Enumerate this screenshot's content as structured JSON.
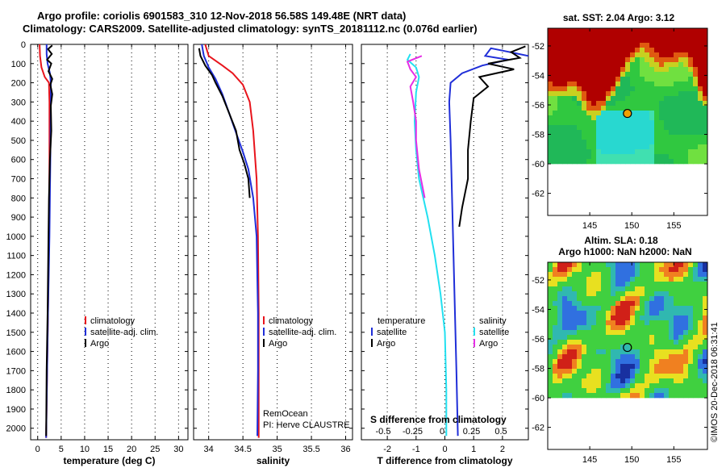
{
  "header": {
    "title_line1": "Argo profile: coriolis 6901583_310 12-Nov-2018 56.58S 149.48E (NRT data)",
    "title_line2": "Climatology: CARS2009. Satellite-adjusted climatology: synTS_20181112.nc (0.076d earlier)"
  },
  "colors": {
    "climatology": "#e8141c",
    "satellite": "#1f2ed8",
    "argo": "#000000",
    "satellite_sal": "#22e0f0",
    "argo_sal": "#e62ee6"
  },
  "depth_axis": {
    "ticks": [
      "0",
      "100",
      "200",
      "300",
      "400",
      "500",
      "600",
      "700",
      "800",
      "900",
      "1000",
      "1100",
      "1200",
      "1300",
      "1400",
      "1500",
      "1600",
      "1700",
      "1800",
      "1900",
      "2000"
    ],
    "ylim": [
      0,
      2060
    ]
  },
  "chart_data": [
    {
      "type": "line",
      "name": "temperature",
      "xlabel": "temperature (deg C)",
      "ylabel": "depth",
      "xlim": [
        -1.5,
        32
      ],
      "xticks": [
        0,
        5,
        10,
        15,
        20,
        25,
        30
      ],
      "xtick_labels": [
        "0",
        "5",
        "10",
        "15",
        "20",
        "25",
        "30"
      ],
      "legend": [
        "climatology",
        "satellite-adj. clim.",
        "Argo"
      ],
      "series": [
        {
          "name": "climatology",
          "color": "#e8141c",
          "points": [
            [
              0.4,
              0
            ],
            [
              0.5,
              60
            ],
            [
              0.8,
              120
            ],
            [
              1.5,
              170
            ],
            [
              2.4,
              200
            ],
            [
              2.5,
              300
            ],
            [
              2.5,
              600
            ],
            [
              2.4,
              1000
            ],
            [
              2.2,
              1400
            ],
            [
              2.0,
              1700
            ],
            [
              1.8,
              2050
            ]
          ]
        },
        {
          "name": "satellite-adj. clim.",
          "color": "#1f2ed8",
          "points": [
            [
              1.9,
              0
            ],
            [
              1.9,
              50
            ],
            [
              2.1,
              100
            ],
            [
              2.6,
              150
            ],
            [
              2.8,
              200
            ],
            [
              2.8,
              300
            ],
            [
              2.7,
              600
            ],
            [
              2.5,
              1000
            ],
            [
              2.2,
              1400
            ],
            [
              2.0,
              1700
            ],
            [
              1.8,
              2050
            ]
          ]
        },
        {
          "name": "Argo",
          "color": "#000000",
          "points": [
            [
              3.1,
              5
            ],
            [
              2.2,
              25
            ],
            [
              3.0,
              50
            ],
            [
              2.0,
              80
            ],
            [
              2.9,
              100
            ],
            [
              2.3,
              140
            ],
            [
              3.1,
              180
            ],
            [
              2.7,
              210
            ],
            [
              3.1,
              260
            ],
            [
              2.8,
              320
            ],
            [
              2.9,
              450
            ],
            [
              2.6,
              600
            ],
            [
              2.4,
              800
            ],
            [
              2.3,
              1000
            ],
            [
              2.1,
              1400
            ],
            [
              1.9,
              1700
            ],
            [
              1.8,
              2040
            ]
          ]
        }
      ]
    },
    {
      "type": "line",
      "name": "salinity",
      "xlabel": "salinity",
      "ylabel": "depth",
      "xlim": [
        33.78,
        36.1
      ],
      "xticks": [
        34,
        34.5,
        35,
        35.5,
        36
      ],
      "xtick_labels": [
        "34",
        "34.5",
        "35",
        "35.5",
        "36"
      ],
      "legend": [
        "climatology",
        "satellite-adj. clim.",
        "Argo"
      ],
      "annotation": [
        "RemOcean",
        "PI: Herve CLAUSTRE"
      ],
      "series": [
        {
          "name": "climatology",
          "color": "#e8141c",
          "points": [
            [
              33.95,
              0
            ],
            [
              34.0,
              60
            ],
            [
              34.2,
              110
            ],
            [
              34.35,
              150
            ],
            [
              34.5,
              210
            ],
            [
              34.6,
              300
            ],
            [
              34.65,
              450
            ],
            [
              34.7,
              700
            ],
            [
              34.72,
              1000
            ],
            [
              34.73,
              1400
            ],
            [
              34.73,
              1700
            ],
            [
              34.73,
              2050
            ]
          ]
        },
        {
          "name": "satellite-adj. clim.",
          "color": "#1f2ed8",
          "points": [
            [
              33.9,
              0
            ],
            [
              33.93,
              60
            ],
            [
              34.0,
              120
            ],
            [
              34.1,
              180
            ],
            [
              34.2,
              260
            ],
            [
              34.3,
              360
            ],
            [
              34.4,
              460
            ],
            [
              34.5,
              560
            ],
            [
              34.58,
              650
            ],
            [
              34.65,
              800
            ],
            [
              34.7,
              1000
            ],
            [
              34.72,
              1400
            ],
            [
              34.72,
              1700
            ],
            [
              34.71,
              2040
            ]
          ]
        },
        {
          "name": "Argo",
          "color": "#000000",
          "points": [
            [
              33.86,
              20
            ],
            [
              33.88,
              60
            ],
            [
              33.95,
              110
            ],
            [
              34.05,
              160
            ],
            [
              34.1,
              200
            ],
            [
              34.2,
              270
            ],
            [
              34.3,
              360
            ],
            [
              34.4,
              450
            ],
            [
              34.45,
              550
            ],
            [
              34.52,
              620
            ],
            [
              34.58,
              700
            ],
            [
              34.6,
              800
            ]
          ]
        }
      ]
    },
    {
      "type": "line",
      "name": "difference",
      "xlabel": "T difference from climatology",
      "xlabel_top": "S difference from climatology",
      "ylabel": "depth",
      "xlim": [
        -2.9,
        2.9
      ],
      "xticks": [
        -2,
        -1,
        0,
        1,
        2
      ],
      "xtick_labels": [
        "-2",
        "-1",
        "0",
        "1",
        "2"
      ],
      "s_ticks": [
        -0.5,
        -0.25,
        0,
        0.25,
        0.5
      ],
      "s_tick_labels": [
        "-0.5",
        "-0.25",
        "0",
        "0.25",
        "0.5"
      ],
      "legend_left_title": "temperature",
      "legend_right_title": "salinity",
      "legend_left": [
        "satellite",
        "Argo"
      ],
      "legend_right": [
        "satellite",
        "Argo"
      ],
      "series": [
        {
          "name": "T satellite",
          "color": "#1f2ed8",
          "points": [
            [
              2.9,
              60
            ],
            [
              1.6,
              20
            ],
            [
              1.4,
              60
            ],
            [
              2.2,
              80
            ],
            [
              1.3,
              110
            ],
            [
              0.6,
              150
            ],
            [
              0.2,
              200
            ],
            [
              0.15,
              300
            ],
            [
              0.2,
              500
            ],
            [
              0.25,
              800
            ],
            [
              0.3,
              1100
            ],
            [
              0.35,
              1400
            ],
            [
              0.4,
              1700
            ],
            [
              0.45,
              2040
            ]
          ]
        },
        {
          "name": "T Argo",
          "color": "#000000",
          "points": [
            [
              2.8,
              10
            ],
            [
              2.3,
              40
            ],
            [
              2.6,
              70
            ],
            [
              1.5,
              100
            ],
            [
              2.4,
              130
            ],
            [
              1.2,
              170
            ],
            [
              1.5,
              220
            ],
            [
              1.0,
              280
            ],
            [
              0.9,
              400
            ],
            [
              0.8,
              550
            ],
            [
              0.8,
              700
            ],
            [
              0.6,
              850
            ],
            [
              0.5,
              950
            ]
          ]
        },
        {
          "name": "S satellite",
          "color": "#22e0f0",
          "points": [
            [
              -1.2,
              50
            ],
            [
              -1.3,
              80
            ],
            [
              -1.0,
              120
            ],
            [
              -0.9,
              170
            ],
            [
              -1.0,
              250
            ],
            [
              -1.05,
              400
            ],
            [
              -1.0,
              550
            ],
            [
              -0.9,
              700
            ],
            [
              -0.6,
              900
            ],
            [
              -0.35,
              1100
            ],
            [
              -0.15,
              1300
            ],
            [
              0.0,
              1500
            ],
            [
              0.05,
              1800
            ],
            [
              0.05,
              2040
            ]
          ]
        },
        {
          "name": "S Argo",
          "color": "#e62ee6",
          "points": [
            [
              -0.8,
              60
            ],
            [
              -1.3,
              90
            ],
            [
              -1.2,
              130
            ],
            [
              -1.0,
              170
            ],
            [
              -1.2,
              220
            ],
            [
              -1.1,
              300
            ],
            [
              -1.0,
              400
            ],
            [
              -1.0,
              500
            ],
            [
              -0.9,
              650
            ],
            [
              -0.7,
              800
            ]
          ]
        }
      ]
    },
    {
      "type": "heatmap",
      "name": "sst-map",
      "title": "sat. SST: 2.04 Argo: 3.12",
      "xticks": [
        145,
        150,
        155
      ],
      "xtick_labels": [
        "145",
        "150",
        "155"
      ],
      "yticks": [
        -52,
        -54,
        -56,
        -58,
        -60,
        -62
      ],
      "ytick_labels": [
        "-52",
        "-54",
        "-56",
        "-58",
        "-60",
        "-62"
      ],
      "xlim": [
        140,
        159
      ],
      "ylim": [
        -63.5,
        -50.8
      ],
      "marker": [
        149.48,
        -56.58
      ],
      "data_bottom_lat": -60
    },
    {
      "type": "heatmap",
      "name": "sla-map",
      "title_line1": "Altim. SLA: 0.18",
      "title_line2": "Argo h1000: NaN h2000: NaN",
      "xticks": [
        145,
        150,
        155
      ],
      "xtick_labels": [
        "145",
        "150",
        "155"
      ],
      "yticks": [
        -52,
        -54,
        -56,
        -58,
        -60,
        -62
      ],
      "ytick_labels": [
        "-52",
        "-54",
        "-56",
        "-58",
        "-60",
        "-62"
      ],
      "xlim": [
        140,
        159
      ],
      "ylim": [
        -63.5,
        -50.8
      ],
      "marker": [
        149.48,
        -56.58
      ],
      "data_bottom_lat": -60
    }
  ],
  "watermark": "©IMOS 20-Dec-2018 06:31:41"
}
